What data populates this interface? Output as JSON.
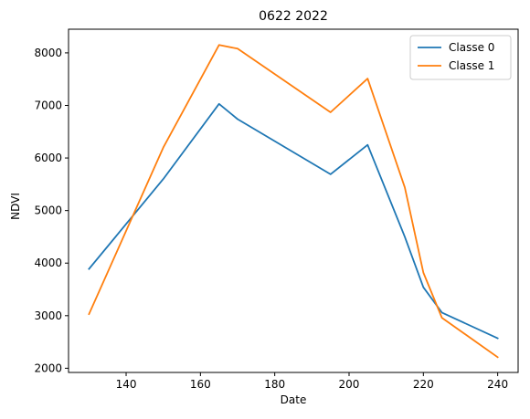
{
  "chart_data": {
    "type": "line",
    "title": "0622 2022",
    "xlabel": "Date",
    "ylabel": "NDVI",
    "xlim": [
      124.5,
      245.5
    ],
    "ylim": [
      1920,
      8450
    ],
    "xticks": [
      140,
      160,
      180,
      200,
      220,
      240
    ],
    "yticks": [
      2000,
      3000,
      4000,
      5000,
      6000,
      7000,
      8000
    ],
    "grid": false,
    "legend_position": "top-right",
    "series": [
      {
        "name": "Classe 0",
        "color": "#1f77b4",
        "x": [
          130,
          150,
          165,
          170,
          195,
          205,
          215,
          220,
          225,
          240
        ],
        "y": [
          3890,
          5600,
          7030,
          6740,
          5690,
          6250,
          4500,
          3540,
          3060,
          2570
        ]
      },
      {
        "name": "Classe 1",
        "color": "#ff7f0e",
        "x": [
          130,
          150,
          165,
          170,
          195,
          205,
          215,
          220,
          225,
          240
        ],
        "y": [
          3030,
          6200,
          8150,
          8080,
          6870,
          7510,
          5440,
          3820,
          2960,
          2210
        ]
      }
    ]
  }
}
